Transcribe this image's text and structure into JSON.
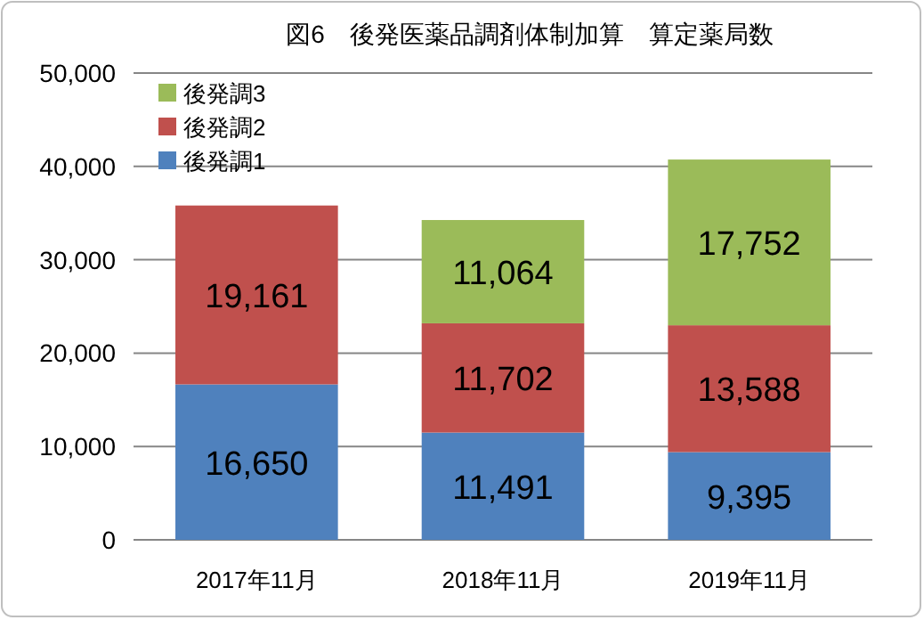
{
  "chart_data": {
    "type": "bar",
    "title": "図6　後発医薬品調剤体制加算　算定薬局数",
    "stacked": true,
    "categories": [
      "2017年11月",
      "2018年11月",
      "2019年11月"
    ],
    "series": [
      {
        "name": "後発調1",
        "color": "#4f81bd",
        "values": [
          16650,
          11491,
          9395
        ],
        "value_labels": [
          "16,650",
          "11,491",
          "9,395"
        ]
      },
      {
        "name": "後発調2",
        "color": "#c0504d",
        "values": [
          19161,
          11702,
          13588
        ],
        "value_labels": [
          "19,161",
          "11,702",
          "13,588"
        ]
      },
      {
        "name": "後発調3",
        "color": "#9bbb59",
        "values": [
          null,
          11064,
          17752
        ],
        "value_labels": [
          null,
          "11,064",
          "17,752"
        ]
      }
    ],
    "ylim": [
      0,
      50000
    ],
    "yticks": [
      0,
      {
        "value": 10000,
        "label": "10,000"
      },
      {
        "value": 20000,
        "label": "20,000"
      },
      {
        "value": 30000,
        "label": "30,000"
      },
      {
        "value": 40000,
        "label": "40,000"
      },
      {
        "value": 50000,
        "label": "50,000"
      }
    ],
    "grid": "y",
    "legend": "top left"
  }
}
